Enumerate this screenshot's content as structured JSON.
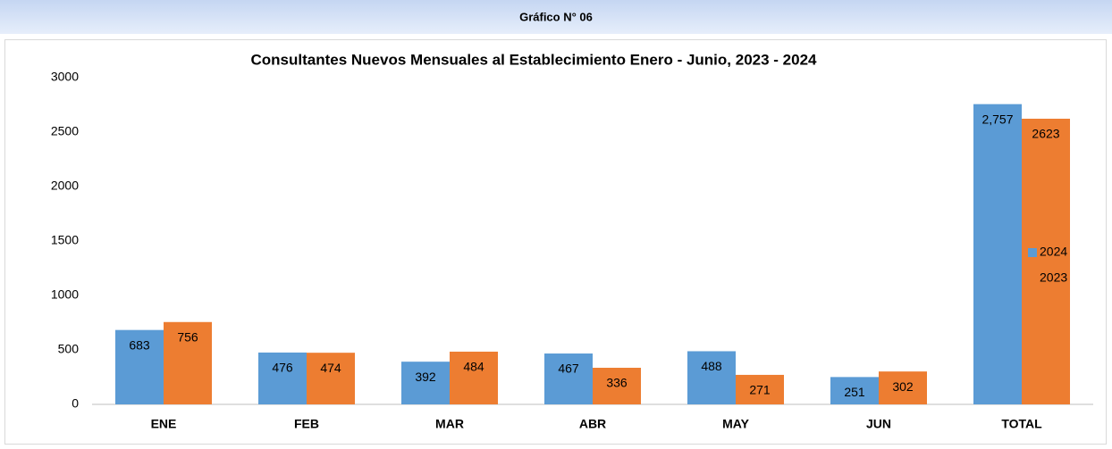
{
  "header": {
    "title": "Gráfico N° 06"
  },
  "chart_data": {
    "type": "bar",
    "title": "Consultantes Nuevos Mensuales al Establecimiento Enero - Junio, 2023 - 2024",
    "categories": [
      "ENE",
      "FEB",
      "MAR",
      "ABR",
      "MAY",
      "JUN",
      "TOTAL"
    ],
    "series": [
      {
        "name": "2024",
        "color": "#5b9bd5",
        "values": [
          683,
          476,
          392,
          467,
          488,
          251,
          2757
        ],
        "value_labels": [
          "683",
          "476",
          "392",
          "467",
          "488",
          "251",
          "2,757"
        ]
      },
      {
        "name": "2023",
        "color": "#ed7d31",
        "values": [
          756,
          474,
          484,
          336,
          271,
          302,
          2623
        ]
      }
    ],
    "ylim": [
      0,
      3000
    ],
    "yticks": [
      0,
      500,
      1000,
      1500,
      2000,
      2500,
      3000
    ],
    "grid": false,
    "legend": "right"
  }
}
